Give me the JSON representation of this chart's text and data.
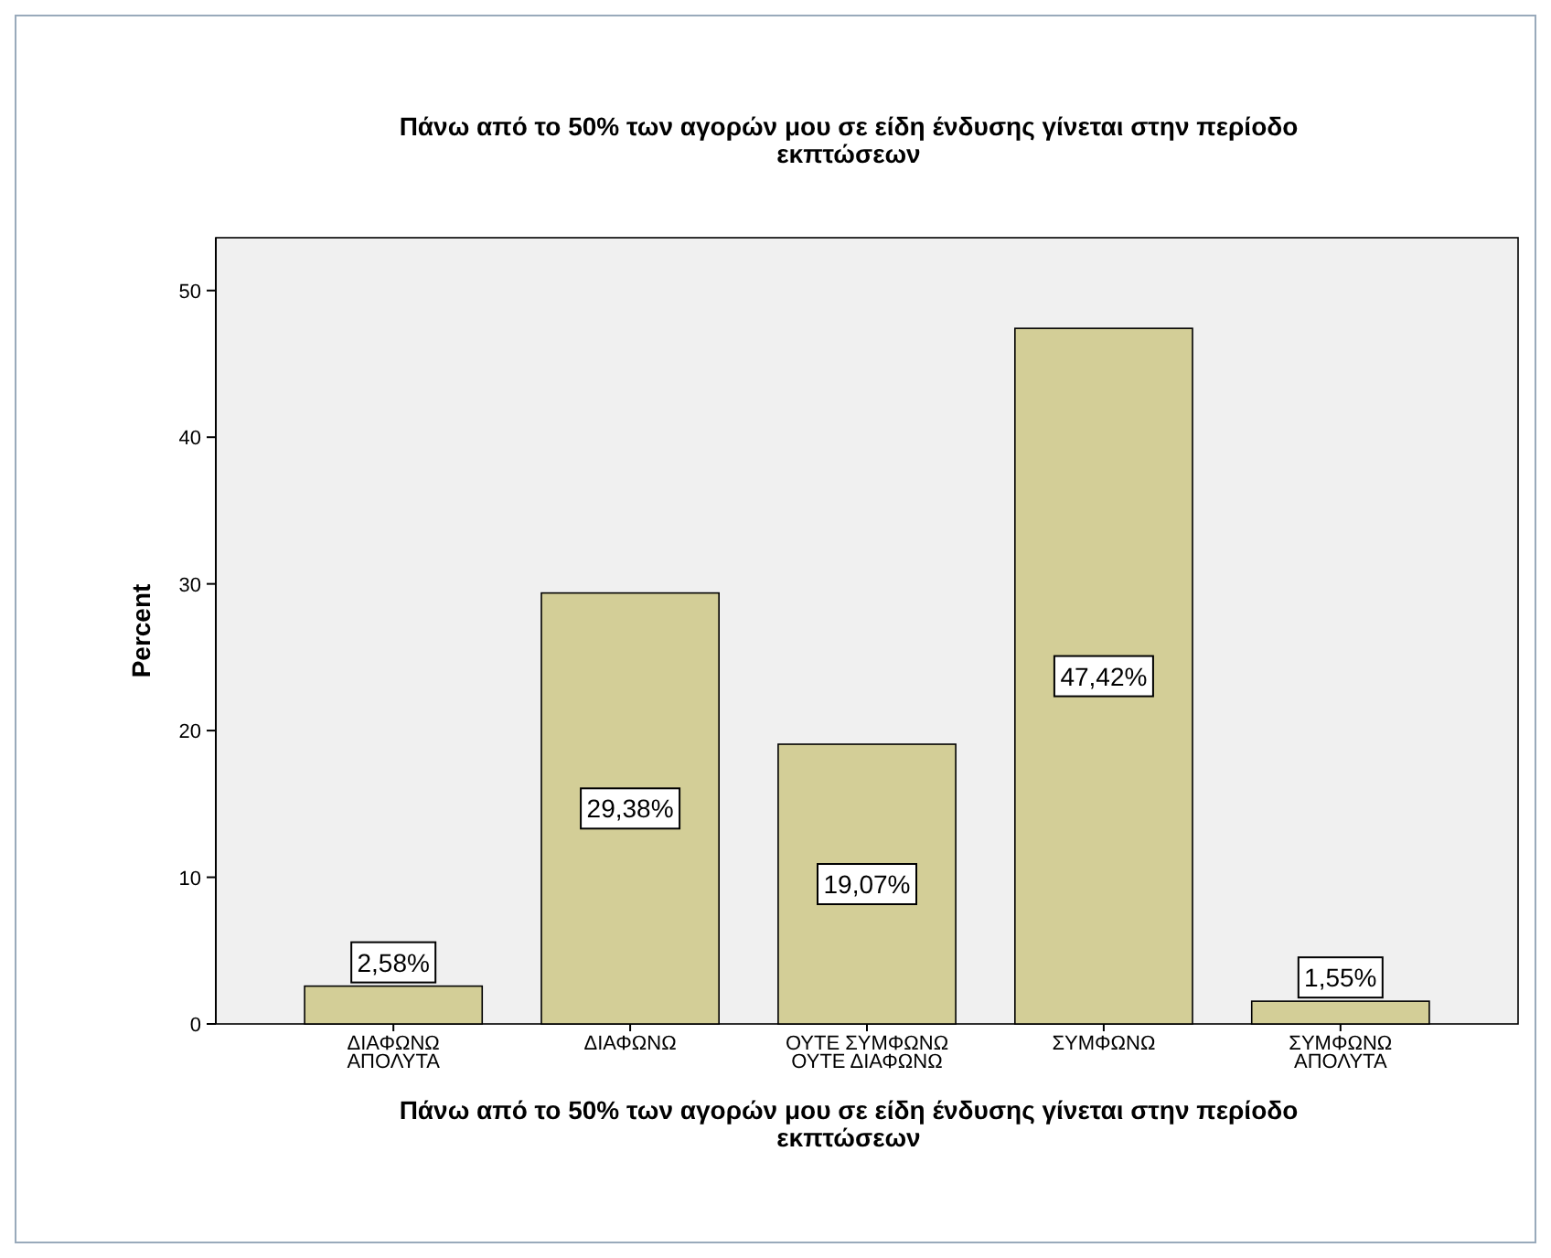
{
  "chart_data": {
    "type": "bar",
    "title": "Πάνω από το 50% των αγορών μου σε είδη ένδυσης γίνεται στην περίοδο εκπτώσεων",
    "xlabel": "Πάνω από το 50% των αγορών μου σε είδη ένδυσης γίνεται στην περίοδο εκπτώσεων",
    "ylabel": "Percent",
    "categories": [
      "ΔΙΑΦΩΝΩ\nΑΠΟΛΥΤΑ",
      "ΔΙΑΦΩΝΩ",
      "ΟΥΤΕ ΣΥΜΦΩΝΩ\nΟΥΤΕ ΔΙΑΦΩΝΩ",
      "ΣΥΜΦΩΝΩ",
      "ΣΥΜΦΩΝΩ\nΑΠΟΛΥΤΑ"
    ],
    "values": [
      2.58,
      29.38,
      19.07,
      47.42,
      1.55
    ],
    "value_labels": [
      "2,58%",
      "29,38%",
      "19,07%",
      "47,42%",
      "1,55%"
    ],
    "color": "#d3ce97",
    "ylim": [
      0,
      53.6
    ],
    "yticks": [
      0,
      10,
      20,
      30,
      40,
      50
    ],
    "grid": false
  }
}
